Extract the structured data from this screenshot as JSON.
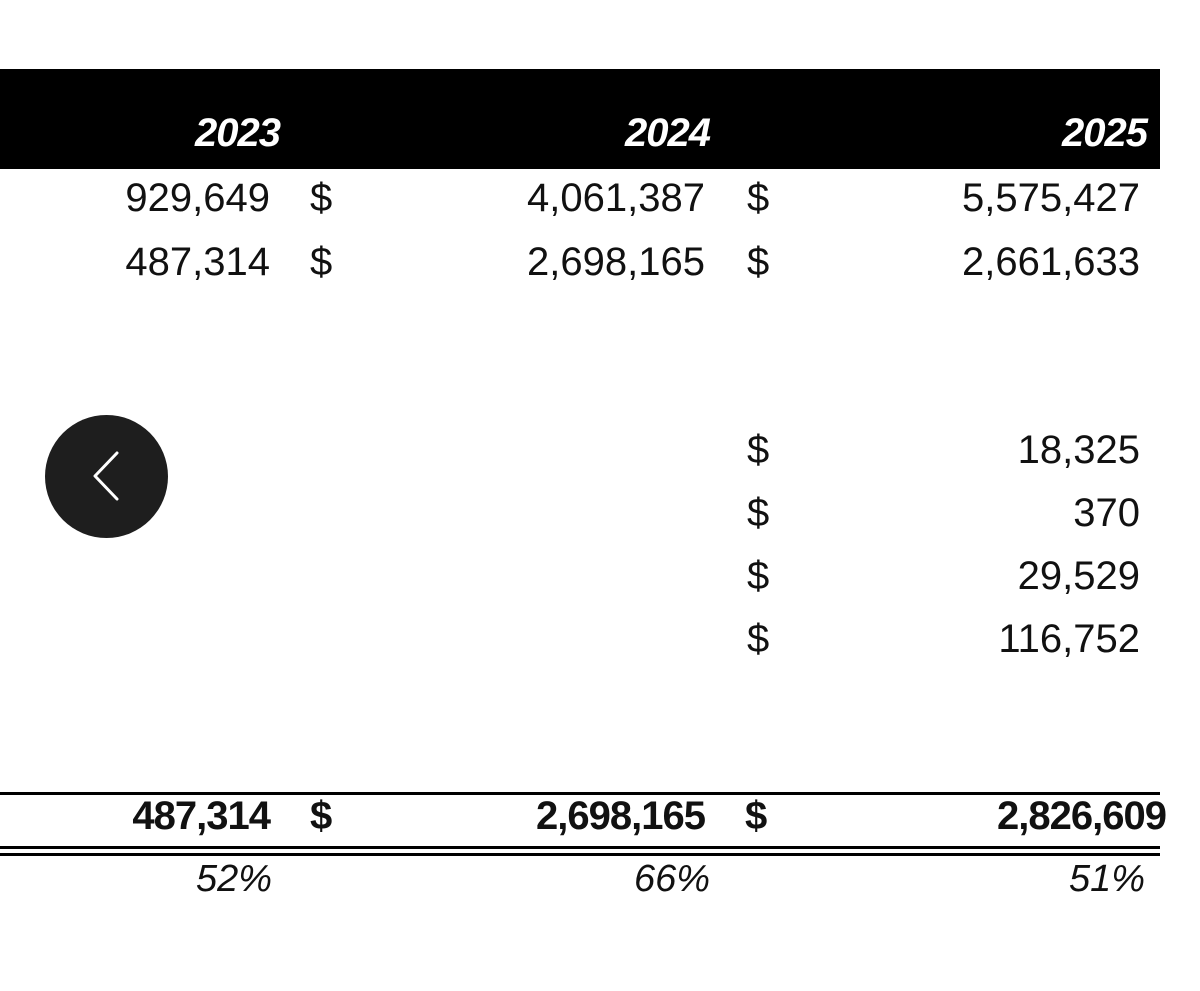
{
  "header": {
    "years": [
      "2023",
      "2024",
      "2025"
    ]
  },
  "rows": {
    "row1": {
      "y2023": "929,649",
      "y2024": "4,061,387",
      "y2025": "5,575,427",
      "currency": "$"
    },
    "row2": {
      "y2023": "487,314",
      "y2024": "2,698,165",
      "y2025": "2,661,633",
      "currency": "$"
    },
    "row3": {
      "y2025": "18,325",
      "currency": "$"
    },
    "row4": {
      "y2025": "370",
      "currency": "$"
    },
    "row5": {
      "y2025": "29,529",
      "currency": "$"
    },
    "row6": {
      "y2025": "116,752",
      "currency": "$"
    }
  },
  "total": {
    "y2023": "487,314",
    "y2024": "2,698,165",
    "y2025": "2,826,609",
    "currency": "$"
  },
  "percent": {
    "y2023": "52%",
    "y2024": "66%",
    "y2025": "51%"
  },
  "nav": {
    "back_icon": "chevron-left-icon"
  },
  "colors": {
    "header_bg": "#000000",
    "header_text": "#ffffff",
    "button_bg": "#1e1e1e"
  }
}
